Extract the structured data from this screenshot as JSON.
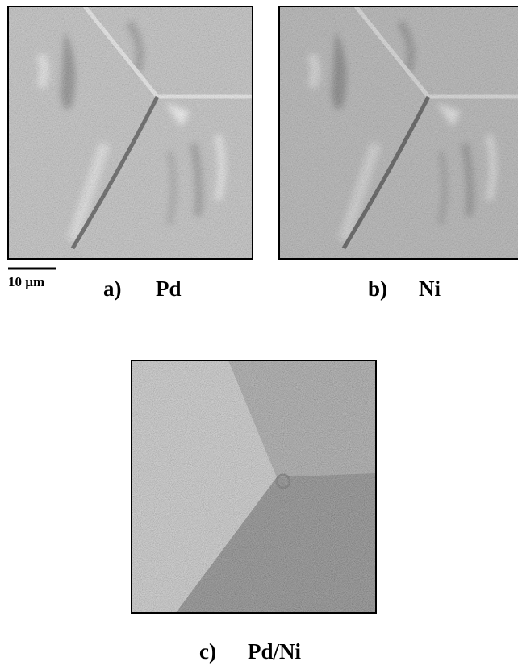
{
  "panels": [
    {
      "label": "a)",
      "element": "Pd"
    },
    {
      "label": "b)",
      "element": "Ni"
    },
    {
      "label": "c)",
      "element": "Pd/Ni"
    }
  ],
  "scale_bar": "10 µm"
}
